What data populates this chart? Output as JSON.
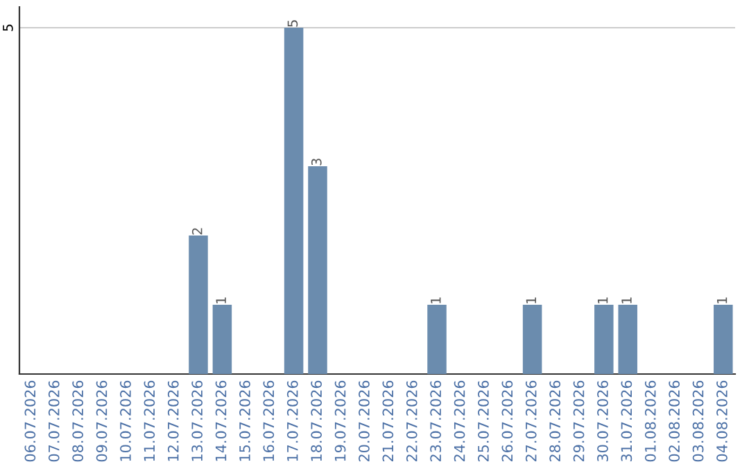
{
  "chart_data": {
    "type": "bar",
    "categories": [
      "06.07.2026",
      "07.07.2026",
      "08.07.2026",
      "09.07.2026",
      "10.07.2026",
      "11.07.2026",
      "12.07.2026",
      "13.07.2026",
      "14.07.2026",
      "15.07.2026",
      "16.07.2026",
      "17.07.2026",
      "18.07.2026",
      "19.07.2026",
      "20.07.2026",
      "21.07.2026",
      "22.07.2026",
      "23.07.2026",
      "24.07.2026",
      "25.07.2026",
      "26.07.2026",
      "27.07.2026",
      "28.07.2026",
      "29.07.2026",
      "30.07.2026",
      "31.07.2026",
      "01.08.2026",
      "02.08.2026",
      "03.08.2026",
      "04.08.2026"
    ],
    "values": [
      0,
      0,
      0,
      0,
      0,
      0,
      0,
      2,
      1,
      0,
      0,
      5,
      3,
      0,
      0,
      0,
      0,
      1,
      0,
      0,
      0,
      1,
      0,
      0,
      1,
      1,
      0,
      0,
      0,
      1
    ],
    "value_labels": [
      null,
      null,
      null,
      null,
      null,
      null,
      null,
      "2",
      "1",
      null,
      null,
      "5",
      "3",
      null,
      null,
      null,
      null,
      "1",
      null,
      null,
      null,
      "1",
      null,
      null,
      "1",
      "1",
      null,
      null,
      null,
      "1"
    ],
    "color": "#6b8cae",
    "ylim": [
      0,
      5.3
    ],
    "yticks": [
      5
    ],
    "grid": "y"
  }
}
